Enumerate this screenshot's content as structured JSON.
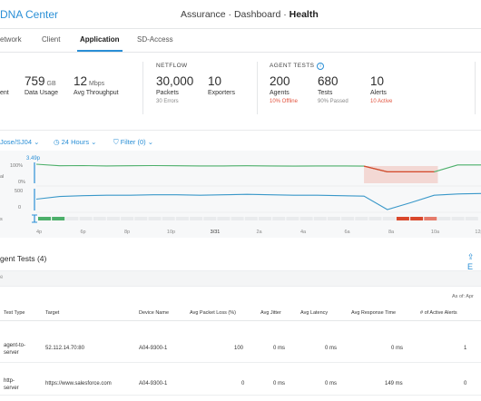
{
  "header": {
    "app_name": "DNA Center",
    "page_title_prefix": "Assurance · Dashboard · ",
    "page_title_bold": "Health"
  },
  "tabs": [
    {
      "label": "etwork"
    },
    {
      "label": "Client"
    },
    {
      "label": "Application",
      "active": true
    },
    {
      "label": "SD-Access"
    }
  ],
  "metrics": {
    "left_fragment": "ent",
    "data_usage": {
      "value": "759",
      "unit": "GB",
      "label": "Data Usage"
    },
    "throughput": {
      "value": "12",
      "unit": "Mbps",
      "label": "Avg Throughput"
    },
    "netflow": {
      "section": "NETFLOW",
      "packets": {
        "value": "30,000",
        "label": "Packets",
        "sub": "30 Errors"
      },
      "exporters": {
        "value": "10",
        "label": "Exporters"
      }
    },
    "agent_tests": {
      "section": "AGENT TESTS",
      "info_icon": "info-icon",
      "agents": {
        "value": "200",
        "label": "Agents",
        "sub": "10% Offline"
      },
      "tests": {
        "value": "680",
        "label": "Tests",
        "sub": "90% Passed"
      },
      "alerts": {
        "value": "10",
        "label": "Alerts",
        "sub": "10 Active"
      }
    }
  },
  "filters": {
    "location": "Jose/SJ04",
    "time_range": "24 Hours",
    "filter": "Filter (0)"
  },
  "chart_data": {
    "type": "line",
    "top_label": "3.49p",
    "y_labels_upper": [
      "100%",
      "0%"
    ],
    "y_labels_lower": [
      "500",
      "0"
    ],
    "row_fragments": [
      "al",
      "s"
    ],
    "x_labels": [
      "4p",
      "6p",
      "8p",
      "10p",
      "3/31",
      "2a",
      "4a",
      "6a",
      "8a",
      "10a",
      "12p"
    ],
    "series": [
      {
        "name": "upper",
        "color": "#4caf6a",
        "values": [
          100,
          92,
          93,
          91,
          92,
          93,
          92,
          91,
          91,
          92,
          91,
          90,
          91,
          91,
          90,
          60,
          60,
          60,
          96,
          96
        ]
      },
      {
        "name": "lower",
        "color": "#3a98c9",
        "values": [
          260,
          320,
          340,
          350,
          350,
          360,
          360,
          350,
          360,
          370,
          360,
          350,
          350,
          340,
          330,
          20,
          180,
          350,
          380,
          390
        ]
      }
    ],
    "colors": {
      "upper": "#4caf6a",
      "lower": "#3a98c9",
      "drop": "#d9472b",
      "band": "#f3d8d4"
    }
  },
  "agent_tests": {
    "title": "gent Tests (4)",
    "export_icon": "export-icon",
    "strip_text": "e",
    "as_of": "As of: Apr",
    "columns": [
      "Test Type",
      "Target",
      "Device Name",
      "Avg Packet Loss (%)",
      "Avg Jitter",
      "Avg Latency",
      "Avg Response Time",
      "# of Active Alerts"
    ],
    "rows": [
      {
        "type_line1": "agent-to-",
        "type_line2": "server",
        "target": "52.112.14.70:80",
        "device": "A04-9300-1",
        "loss": "100",
        "jitter": "0 ms",
        "latency": "0 ms",
        "response": "0 ms",
        "alerts": "1"
      },
      {
        "type_line1": "http-",
        "type_line2": "server",
        "target": "https://www.salesforce.com",
        "device": "A04-9300-1",
        "loss": "0",
        "jitter": "0 ms",
        "latency": "0 ms",
        "response": "149 ms",
        "alerts": "0"
      }
    ]
  }
}
